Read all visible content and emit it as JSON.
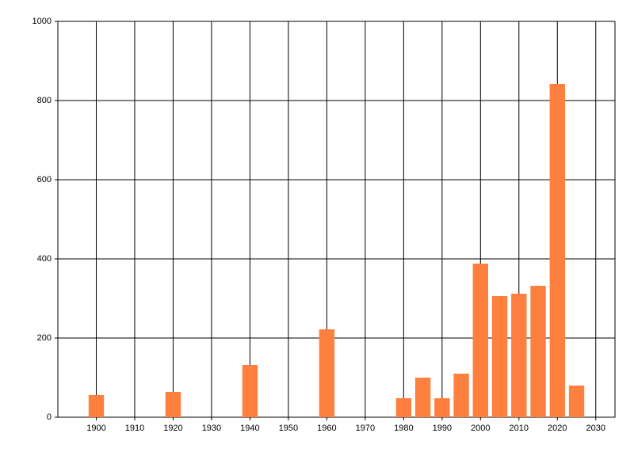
{
  "chart_data": {
    "type": "bar",
    "x": [
      1900,
      1920,
      1940,
      1960,
      1980,
      1985,
      1990,
      1995,
      2000,
      2005,
      2010,
      2015,
      2020,
      2025
    ],
    "values": [
      56,
      64,
      132,
      222,
      48,
      100,
      48,
      110,
      388,
      306,
      312,
      332,
      842,
      80
    ],
    "color": "#ff7f3f",
    "xlim": [
      1890,
      2035
    ],
    "xticks": [
      1900,
      1910,
      1920,
      1930,
      1940,
      1950,
      1960,
      1970,
      1980,
      1990,
      2000,
      2010,
      2020,
      2030
    ],
    "ylim": [
      0,
      1000
    ],
    "yticks": [
      0,
      200,
      400,
      600,
      800,
      1000
    ],
    "grid": true
  }
}
